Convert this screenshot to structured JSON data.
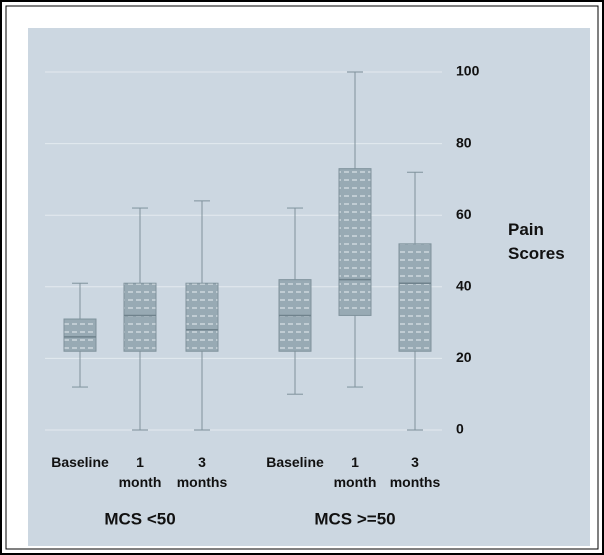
{
  "chart_data": {
    "type": "box",
    "y_label": "Pain Scores",
    "ylim": [
      0,
      100
    ],
    "yticks": [
      0,
      20,
      40,
      60,
      80,
      100
    ],
    "grid": true,
    "color": "#98aab4",
    "groups": [
      {
        "name": "MCS <50",
        "categories": [
          "Baseline",
          "1 month",
          "3 months"
        ],
        "boxes": [
          {
            "min": 12,
            "q1": 22,
            "median": 26,
            "q3": 31,
            "max": 41
          },
          {
            "min": 0,
            "q1": 22,
            "median": 32,
            "q3": 41,
            "max": 62
          },
          {
            "min": 0,
            "q1": 22,
            "median": 28,
            "q3": 41,
            "max": 64
          }
        ]
      },
      {
        "name": "MCS >=50",
        "categories": [
          "Baseline",
          "1 month",
          "3 months"
        ],
        "boxes": [
          {
            "min": 10,
            "q1": 22,
            "median": 32,
            "q3": 42,
            "max": 62
          },
          {
            "min": 12,
            "q1": 32,
            "median": 42,
            "q3": 73,
            "max": 100
          },
          {
            "min": 0,
            "q1": 22,
            "median": 41,
            "q3": 52,
            "max": 72
          }
        ]
      }
    ]
  }
}
